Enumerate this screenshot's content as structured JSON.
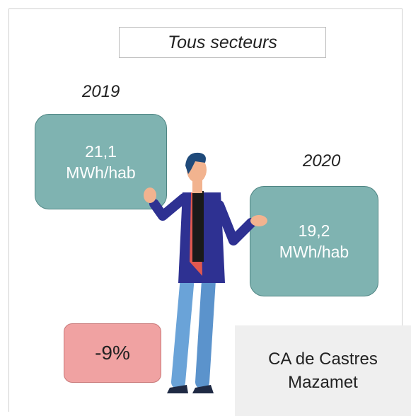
{
  "header": {
    "title": "Tous secteurs"
  },
  "years": [
    {
      "year": "2019",
      "value": "21,1",
      "unit": "MWh/hab"
    },
    {
      "year": "2020",
      "value": "19,2",
      "unit": "MWh/hab"
    }
  ],
  "change": "-9%",
  "territory": {
    "lines": [
      "CA de Castres",
      "Mazamet"
    ]
  }
}
